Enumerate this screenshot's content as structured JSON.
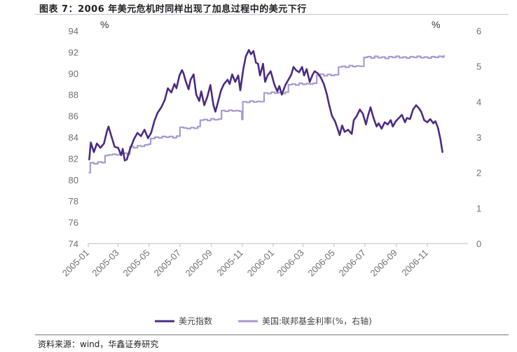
{
  "header": {
    "title": "图表 7：2006 年美元危机时同样出现了加息过程中的美元下行"
  },
  "footer": {
    "source": "资料来源：wind，华鑫证券研究"
  },
  "chart_data": {
    "type": "line",
    "left_axis": {
      "label": "%",
      "ylim": [
        74,
        94
      ],
      "ticks": [
        74,
        76,
        78,
        80,
        82,
        84,
        86,
        88,
        90,
        92,
        94
      ]
    },
    "right_axis": {
      "label": "%",
      "ylim": [
        0,
        6
      ],
      "ticks": [
        0,
        1,
        2,
        3,
        4,
        5,
        6
      ]
    },
    "x_axis": {
      "ticks": [
        "2005-01",
        "2005-03",
        "2005-05",
        "2005-07",
        "2005-09",
        "2005-11",
        "2006-01",
        "2006-03",
        "2006-05",
        "2006-07",
        "2006-09",
        "2006-11"
      ]
    },
    "grid": false,
    "legend_position": "bottom",
    "series": [
      {
        "name": "美元指数",
        "axis": "left",
        "color": "#4b2c83",
        "points": [
          [
            "2005-01-03",
            81.9
          ],
          [
            "2005-01-06",
            83.5
          ],
          [
            "2005-01-12",
            82.6
          ],
          [
            "2005-01-18",
            83.4
          ],
          [
            "2005-01-25",
            83.0
          ],
          [
            "2005-02-01",
            83.4
          ],
          [
            "2005-02-07",
            84.6
          ],
          [
            "2005-02-10",
            85.0
          ],
          [
            "2005-02-15",
            84.2
          ],
          [
            "2005-02-22",
            83.1
          ],
          [
            "2005-03-01",
            83.0
          ],
          [
            "2005-03-07",
            82.3
          ],
          [
            "2005-03-10",
            82.9
          ],
          [
            "2005-03-14",
            81.8
          ],
          [
            "2005-03-18",
            81.9
          ],
          [
            "2005-03-24",
            82.8
          ],
          [
            "2005-04-01",
            83.8
          ],
          [
            "2005-04-08",
            84.4
          ],
          [
            "2005-04-15",
            84.1
          ],
          [
            "2005-04-22",
            84.7
          ],
          [
            "2005-04-29",
            83.9
          ],
          [
            "2005-05-05",
            84.4
          ],
          [
            "2005-05-12",
            85.6
          ],
          [
            "2005-05-18",
            86.3
          ],
          [
            "2005-05-25",
            86.8
          ],
          [
            "2005-06-01",
            87.5
          ],
          [
            "2005-06-07",
            88.6
          ],
          [
            "2005-06-14",
            88.2
          ],
          [
            "2005-06-20",
            89.0
          ],
          [
            "2005-06-24",
            88.6
          ],
          [
            "2005-06-30",
            89.8
          ],
          [
            "2005-07-05",
            90.3
          ],
          [
            "2005-07-08",
            90.0
          ],
          [
            "2005-07-12",
            89.3
          ],
          [
            "2005-07-18",
            88.5
          ],
          [
            "2005-07-22",
            89.4
          ],
          [
            "2005-07-28",
            89.9
          ],
          [
            "2005-08-02",
            88.0
          ],
          [
            "2005-08-08",
            87.4
          ],
          [
            "2005-08-12",
            88.3
          ],
          [
            "2005-08-18",
            87.0
          ],
          [
            "2005-08-24",
            87.8
          ],
          [
            "2005-08-30",
            88.9
          ],
          [
            "2005-09-05",
            87.0
          ],
          [
            "2005-09-09",
            86.4
          ],
          [
            "2005-09-14",
            87.3
          ],
          [
            "2005-09-20",
            88.4
          ],
          [
            "2005-09-26",
            89.0
          ],
          [
            "2005-10-03",
            89.4
          ],
          [
            "2005-10-07",
            89.0
          ],
          [
            "2005-10-12",
            89.9
          ],
          [
            "2005-10-18",
            89.2
          ],
          [
            "2005-10-24",
            89.8
          ],
          [
            "2005-10-28",
            88.4
          ],
          [
            "2005-11-03",
            90.4
          ],
          [
            "2005-11-08",
            91.6
          ],
          [
            "2005-11-14",
            92.2
          ],
          [
            "2005-11-18",
            91.8
          ],
          [
            "2005-11-23",
            92.1
          ],
          [
            "2005-11-28",
            91.0
          ],
          [
            "2005-12-02",
            90.9
          ],
          [
            "2005-12-06",
            89.8
          ],
          [
            "2005-12-12",
            90.9
          ],
          [
            "2005-12-16",
            89.2
          ],
          [
            "2005-12-21",
            89.8
          ],
          [
            "2005-12-27",
            90.2
          ],
          [
            "2006-01-03",
            89.0
          ],
          [
            "2006-01-09",
            88.3
          ],
          [
            "2006-01-13",
            88.8
          ],
          [
            "2006-01-18",
            88.0
          ],
          [
            "2006-01-25",
            88.9
          ],
          [
            "2006-01-31",
            89.4
          ],
          [
            "2006-02-06",
            89.9
          ],
          [
            "2006-02-10",
            90.6
          ],
          [
            "2006-02-15",
            90.3
          ],
          [
            "2006-02-21",
            90.1
          ],
          [
            "2006-02-27",
            90.6
          ],
          [
            "2006-03-03",
            89.8
          ],
          [
            "2006-03-08",
            90.4
          ],
          [
            "2006-03-14",
            89.2
          ],
          [
            "2006-03-20",
            89.9
          ],
          [
            "2006-03-24",
            90.2
          ],
          [
            "2006-03-30",
            90.0
          ],
          [
            "2006-04-05",
            89.6
          ],
          [
            "2006-04-11",
            89.0
          ],
          [
            "2006-04-17",
            88.0
          ],
          [
            "2006-04-21",
            87.1
          ],
          [
            "2006-04-27",
            86.0
          ],
          [
            "2006-05-03",
            85.5
          ],
          [
            "2006-05-08",
            84.8
          ],
          [
            "2006-05-12",
            84.2
          ],
          [
            "2006-05-17",
            85.1
          ],
          [
            "2006-05-22",
            84.5
          ],
          [
            "2006-05-29",
            84.7
          ],
          [
            "2006-06-05",
            84.3
          ],
          [
            "2006-06-09",
            85.6
          ],
          [
            "2006-06-15",
            86.0
          ],
          [
            "2006-06-21",
            86.6
          ],
          [
            "2006-06-27",
            86.2
          ],
          [
            "2006-07-03",
            85.2
          ],
          [
            "2006-07-07",
            86.0
          ],
          [
            "2006-07-12",
            86.8
          ],
          [
            "2006-07-18",
            85.8
          ],
          [
            "2006-07-24",
            85.0
          ],
          [
            "2006-07-28",
            85.3
          ],
          [
            "2006-08-03",
            84.8
          ],
          [
            "2006-08-09",
            85.4
          ],
          [
            "2006-08-15",
            85.2
          ],
          [
            "2006-08-21",
            85.6
          ],
          [
            "2006-08-25",
            85.0
          ],
          [
            "2006-08-31",
            85.5
          ],
          [
            "2006-09-06",
            85.8
          ],
          [
            "2006-09-12",
            86.1
          ],
          [
            "2006-09-18",
            85.4
          ],
          [
            "2006-09-22",
            85.8
          ],
          [
            "2006-09-28",
            85.7
          ],
          [
            "2006-10-04",
            86.6
          ],
          [
            "2006-10-10",
            87.0
          ],
          [
            "2006-10-16",
            86.7
          ],
          [
            "2006-10-20",
            86.4
          ],
          [
            "2006-10-26",
            85.6
          ],
          [
            "2006-11-01",
            85.4
          ],
          [
            "2006-11-07",
            85.7
          ],
          [
            "2006-11-13",
            85.3
          ],
          [
            "2006-11-17",
            85.5
          ],
          [
            "2006-11-22",
            84.9
          ],
          [
            "2006-11-27",
            83.8
          ],
          [
            "2006-12-01",
            82.6
          ]
        ]
      },
      {
        "name": "美国:联邦基金利率(%，右轴)",
        "axis": "right",
        "color": "#a89ad0",
        "points": [
          [
            "2005-01-03",
            2.0
          ],
          [
            "2005-01-05",
            2.28
          ],
          [
            "2005-01-12",
            2.25
          ],
          [
            "2005-01-20",
            2.3
          ],
          [
            "2005-01-28",
            2.28
          ],
          [
            "2005-02-03",
            2.48
          ],
          [
            "2005-02-10",
            2.5
          ],
          [
            "2005-02-18",
            2.52
          ],
          [
            "2005-02-25",
            2.5
          ],
          [
            "2005-03-04",
            2.55
          ],
          [
            "2005-03-10",
            2.55
          ],
          [
            "2005-03-18",
            2.52
          ],
          [
            "2005-03-24",
            2.74
          ],
          [
            "2005-03-31",
            2.7
          ],
          [
            "2005-04-08",
            2.76
          ],
          [
            "2005-04-15",
            2.74
          ],
          [
            "2005-04-22",
            2.78
          ],
          [
            "2005-04-29",
            2.8
          ],
          [
            "2005-05-04",
            2.96
          ],
          [
            "2005-05-12",
            3.0
          ],
          [
            "2005-05-20",
            2.98
          ],
          [
            "2005-05-27",
            3.02
          ],
          [
            "2005-06-03",
            3.0
          ],
          [
            "2005-06-10",
            3.02
          ],
          [
            "2005-06-17",
            2.98
          ],
          [
            "2005-06-24",
            3.03
          ],
          [
            "2005-07-01",
            3.28
          ],
          [
            "2005-07-08",
            3.26
          ],
          [
            "2005-07-15",
            3.24
          ],
          [
            "2005-07-22",
            3.27
          ],
          [
            "2005-07-29",
            3.25
          ],
          [
            "2005-08-05",
            3.3
          ],
          [
            "2005-08-10",
            3.48
          ],
          [
            "2005-08-17",
            3.5
          ],
          [
            "2005-08-24",
            3.47
          ],
          [
            "2005-08-31",
            3.52
          ],
          [
            "2005-09-07",
            3.49
          ],
          [
            "2005-09-14",
            3.51
          ],
          [
            "2005-09-21",
            3.75
          ],
          [
            "2005-09-28",
            3.73
          ],
          [
            "2005-10-05",
            3.76
          ],
          [
            "2005-10-12",
            3.74
          ],
          [
            "2005-10-19",
            3.75
          ],
          [
            "2005-10-26",
            3.73
          ],
          [
            "2005-10-31",
            3.5
          ],
          [
            "2005-11-02",
            4.0
          ],
          [
            "2005-11-09",
            3.98
          ],
          [
            "2005-11-16",
            4.02
          ],
          [
            "2005-11-23",
            3.99
          ],
          [
            "2005-11-30",
            4.01
          ],
          [
            "2005-12-06",
            4.0
          ],
          [
            "2005-12-14",
            4.25
          ],
          [
            "2005-12-21",
            4.23
          ],
          [
            "2005-12-28",
            4.27
          ],
          [
            "2006-01-04",
            4.24
          ],
          [
            "2006-01-11",
            4.26
          ],
          [
            "2006-01-18",
            4.23
          ],
          [
            "2006-01-25",
            4.27
          ],
          [
            "2006-01-31",
            4.48
          ],
          [
            "2006-02-07",
            4.5
          ],
          [
            "2006-02-14",
            4.47
          ],
          [
            "2006-02-21",
            4.52
          ],
          [
            "2006-02-28",
            4.49
          ],
          [
            "2006-03-07",
            4.51
          ],
          [
            "2006-03-14",
            4.5
          ],
          [
            "2006-03-21",
            4.52
          ],
          [
            "2006-03-28",
            4.75
          ],
          [
            "2006-04-04",
            4.78
          ],
          [
            "2006-04-11",
            4.73
          ],
          [
            "2006-04-18",
            4.77
          ],
          [
            "2006-04-25",
            4.74
          ],
          [
            "2006-05-02",
            4.76
          ],
          [
            "2006-05-10",
            4.98
          ],
          [
            "2006-05-17",
            5.0
          ],
          [
            "2006-05-24",
            4.97
          ],
          [
            "2006-05-31",
            5.02
          ],
          [
            "2006-06-07",
            4.99
          ],
          [
            "2006-06-14",
            5.01
          ],
          [
            "2006-06-21",
            5.0
          ],
          [
            "2006-06-29",
            5.25
          ],
          [
            "2006-07-06",
            5.27
          ],
          [
            "2006-07-13",
            5.23
          ],
          [
            "2006-07-20",
            5.28
          ],
          [
            "2006-07-27",
            5.24
          ],
          [
            "2006-08-03",
            5.26
          ],
          [
            "2006-08-10",
            5.22
          ],
          [
            "2006-08-17",
            5.27
          ],
          [
            "2006-08-24",
            5.25
          ],
          [
            "2006-08-31",
            5.28
          ],
          [
            "2006-09-07",
            5.24
          ],
          [
            "2006-09-14",
            5.26
          ],
          [
            "2006-09-21",
            5.23
          ],
          [
            "2006-09-28",
            5.27
          ],
          [
            "2006-10-05",
            5.25
          ],
          [
            "2006-10-12",
            5.28
          ],
          [
            "2006-10-19",
            5.24
          ],
          [
            "2006-10-26",
            5.26
          ],
          [
            "2006-11-02",
            5.23
          ],
          [
            "2006-11-09",
            5.27
          ],
          [
            "2006-11-16",
            5.25
          ],
          [
            "2006-11-23",
            5.28
          ],
          [
            "2006-11-30",
            5.26
          ],
          [
            "2006-12-04",
            5.3
          ]
        ]
      }
    ]
  }
}
